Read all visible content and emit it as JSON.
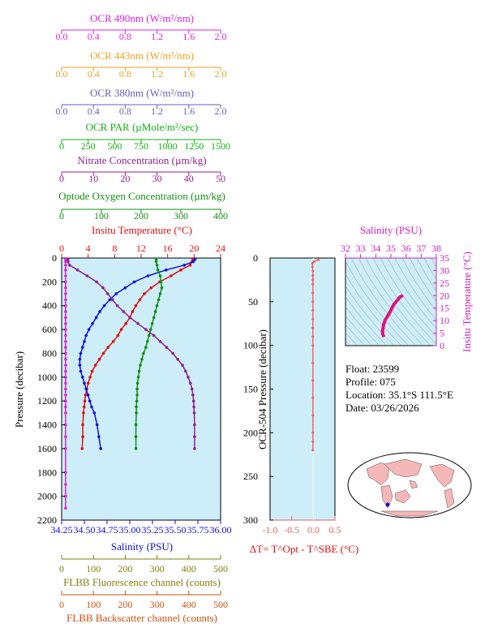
{
  "colors": {
    "panel_bg": "#cdeef8",
    "ocr490": "#e020e0",
    "ocr443": "#f0a020",
    "ocr380": "#6060c0",
    "par": "#10b010",
    "nitrate": "#902090",
    "oxygen": "#109010",
    "temperature": "#e01010",
    "salinity": "#1010e0",
    "fluorescence": "#808010",
    "backscatter": "#d05010",
    "dt": "#f06060",
    "ts_curve": "#e01080",
    "map_land": "#f4b8b8",
    "map_ocean": "#ffffff",
    "float_marker": "#1010e0"
  },
  "axes": {
    "ocr490": {
      "label": "OCR 490nm (W/m²/nm)",
      "ticks": [
        "0.0",
        "0.4",
        "0.8",
        "1.2",
        "1.6",
        "2.0"
      ]
    },
    "ocr443": {
      "label": "OCR 443nm (W/m²/nm)",
      "ticks": [
        "0.0",
        "0.4",
        "0.8",
        "1.2",
        "1.6",
        "2.0"
      ]
    },
    "ocr380": {
      "label": "OCR 380nm (W/m²/nm)",
      "ticks": [
        "0.0",
        "0.4",
        "0.8",
        "1.2",
        "1.6",
        "2.0"
      ]
    },
    "par": {
      "label": "OCR PAR (µMole/m²/sec)",
      "ticks": [
        "0",
        "250",
        "500",
        "750",
        "1000",
        "1250",
        "1500"
      ]
    },
    "nitrate": {
      "label": "Nitrate Concentration (µm/kg)",
      "ticks": [
        "0",
        "10",
        "20",
        "30",
        "40",
        "50"
      ]
    },
    "oxygen": {
      "label": "Optode Oxygen Concentration (µm/kg)",
      "ticks": [
        "0",
        "100",
        "200",
        "300",
        "400"
      ]
    },
    "temperature": {
      "label": "Insitu Temperature (°C)",
      "ticks": [
        "0",
        "4",
        "8",
        "12",
        "16",
        "20",
        "24"
      ]
    },
    "salinity": {
      "label": "Salinity (PSU)",
      "ticks": [
        "34.25",
        "34.50",
        "34.75",
        "35.00",
        "35.25",
        "35.50",
        "35.75",
        "36.00"
      ]
    },
    "fluorescence": {
      "label": "FLBB Fluorescence channel (counts)",
      "ticks": [
        "0",
        "100",
        "200",
        "300",
        "400",
        "500"
      ]
    },
    "backscatter": {
      "label": "FLBB Backscatter channel (counts)",
      "ticks": [
        "0",
        "100",
        "200",
        "300",
        "400",
        "500"
      ]
    },
    "pressure": {
      "label": "Pressure (decibar)",
      "ticks": [
        "0",
        "200",
        "400",
        "600",
        "800",
        "1000",
        "1200",
        "1400",
        "1600",
        "1800",
        "2000",
        "2200"
      ]
    },
    "ocr_pressure": {
      "label": "OCR-504 Pressure (decibar)",
      "ticks": [
        "0",
        "50",
        "100",
        "150",
        "200",
        "250",
        "300"
      ]
    },
    "dt": {
      "label": "ΔT= T^Opt - T^SBE (°C)",
      "ticks": [
        "-1.0",
        "-0.5",
        "0.0",
        "0.5"
      ]
    },
    "ts_salinity": {
      "label": "Salinity (PSU)",
      "ticks": [
        "32",
        "33",
        "34",
        "35",
        "36",
        "37",
        "38"
      ]
    },
    "ts_temperature": {
      "label": "Insitu Temperature (°C)",
      "ticks": [
        "0",
        "5",
        "10",
        "15",
        "20",
        "25",
        "30",
        "35"
      ]
    }
  },
  "info": {
    "float": "Float:  23599",
    "profile": "Profile:  075",
    "location": "Location:  35.1°S  111.5°E",
    "date": "Date:  03/26/2026"
  },
  "chart_data": [
    {
      "type": "line",
      "name": "main-profile",
      "ylim": [
        2200,
        0
      ],
      "series": [
        {
          "name": "Insitu Temperature",
          "xlim": [
            0,
            24
          ],
          "x": [
            19.8,
            19.7,
            19.4,
            18.0,
            16.5,
            14.8,
            13.5,
            12.5,
            11.8,
            11.2,
            10.7,
            10.3,
            9.7,
            9.0,
            8.5,
            7.8,
            7.0,
            6.3,
            5.7,
            5.1,
            4.6,
            4.3,
            4.0,
            3.8,
            3.6,
            3.5,
            3.4,
            3.3,
            3.2,
            3.2,
            3.1
          ],
          "y": [
            10,
            30,
            60,
            100,
            150,
            200,
            250,
            300,
            350,
            400,
            450,
            500,
            550,
            600,
            650,
            700,
            750,
            800,
            850,
            900,
            950,
            1000,
            1050,
            1100,
            1150,
            1200,
            1250,
            1300,
            1400,
            1500,
            1600
          ]
        },
        {
          "name": "Salinity",
          "xlim": [
            34.25,
            36.0
          ],
          "x": [
            35.72,
            35.7,
            35.6,
            35.4,
            35.2,
            35.05,
            34.95,
            34.85,
            34.78,
            34.72,
            34.67,
            34.63,
            34.59,
            34.55,
            34.52,
            34.5,
            34.48,
            34.46,
            34.45,
            34.45,
            34.46,
            34.48,
            34.5,
            34.52,
            34.54,
            34.56,
            34.58,
            34.61,
            34.64,
            34.66,
            34.68
          ],
          "y": [
            10,
            30,
            60,
            100,
            150,
            200,
            250,
            300,
            350,
            400,
            450,
            500,
            550,
            600,
            650,
            700,
            750,
            800,
            850,
            900,
            950,
            1000,
            1050,
            1100,
            1150,
            1200,
            1250,
            1300,
            1400,
            1500,
            1600
          ]
        },
        {
          "name": "Optode Oxygen",
          "xlim": [
            0,
            400
          ],
          "x": [
            238,
            238,
            240,
            242,
            248,
            250,
            252,
            248,
            244,
            240,
            236,
            232,
            228,
            224,
            220,
            216,
            212,
            206,
            202,
            198,
            195,
            193,
            191,
            190,
            190,
            189,
            188,
            188,
            187,
            187,
            187
          ],
          "y": [
            10,
            30,
            60,
            100,
            150,
            200,
            250,
            300,
            350,
            400,
            450,
            500,
            550,
            600,
            650,
            700,
            750,
            800,
            850,
            900,
            950,
            1000,
            1050,
            1100,
            1150,
            1200,
            1250,
            1300,
            1400,
            1500,
            1600
          ]
        },
        {
          "name": "Nitrate",
          "xlim": [
            0,
            50
          ],
          "x": [
            2,
            2,
            2.5,
            5,
            8,
            11,
            13,
            14.5,
            16,
            17.5,
            19.5,
            21.5,
            24,
            26.5,
            29,
            31,
            33,
            35,
            36.5,
            38,
            39,
            39.8,
            40.5,
            41,
            41.3,
            41.5,
            41.6,
            41.7,
            41.8,
            41.8,
            41.8
          ],
          "y": [
            10,
            30,
            60,
            100,
            150,
            200,
            250,
            300,
            350,
            400,
            450,
            500,
            550,
            600,
            650,
            700,
            750,
            800,
            850,
            900,
            950,
            1000,
            1050,
            1100,
            1150,
            1200,
            1250,
            1300,
            1400,
            1500,
            1600
          ]
        },
        {
          "name": "OCR 490nm",
          "xlim": [
            0,
            2.0
          ],
          "x": [
            0.05,
            0.05,
            0.05,
            0.05,
            0.05,
            0.05,
            0.05,
            0.05,
            0.05,
            0.05,
            0.05,
            0.05,
            0.05,
            0.05,
            0.05,
            0.05,
            0.05,
            0.05,
            0.05,
            0.05,
            0.05,
            0.05,
            0.05,
            0.05,
            0.05,
            0.05,
            0.05,
            0.05,
            0.05,
            0.05,
            0.05,
            0.05,
            0.05,
            0.05,
            0.05
          ],
          "y": [
            10,
            30,
            60,
            100,
            150,
            200,
            250,
            300,
            350,
            400,
            450,
            500,
            550,
            600,
            650,
            700,
            750,
            800,
            850,
            900,
            950,
            1000,
            1050,
            1100,
            1150,
            1200,
            1250,
            1300,
            1400,
            1500,
            1600,
            1800,
            1900,
            2000,
            2100
          ]
        }
      ]
    },
    {
      "type": "line",
      "name": "delta-t",
      "xlim": [
        -1.0,
        0.5
      ],
      "ylim": [
        300,
        0
      ],
      "series": [
        {
          "name": "dT",
          "x": [
            0.12,
            0.02,
            -0.02,
            -0.02,
            -0.01,
            -0.01,
            -0.01,
            -0.01,
            -0.01,
            -0.01,
            -0.01,
            -0.01,
            -0.01,
            -0.01,
            -0.01,
            -0.01,
            -0.01,
            -0.01,
            -0.01,
            -0.01,
            -0.01,
            -0.01
          ],
          "y": [
            2,
            4,
            6,
            10,
            15,
            20,
            25,
            30,
            40,
            50,
            60,
            70,
            80,
            90,
            100,
            120,
            140,
            160,
            180,
            200,
            210,
            220
          ]
        }
      ]
    },
    {
      "type": "line",
      "name": "ts-diagram",
      "xlim": [
        32,
        38
      ],
      "ylim": [
        0,
        35
      ],
      "series": [
        {
          "name": "T-S",
          "x": [
            35.72,
            35.7,
            35.6,
            35.4,
            35.2,
            35.05,
            34.95,
            34.85,
            34.78,
            34.72,
            34.67,
            34.63,
            34.59,
            34.55,
            34.52,
            34.5,
            34.48,
            34.46,
            34.45,
            34.45,
            34.46,
            34.48,
            34.5
          ],
          "y": [
            19.8,
            19.7,
            19.4,
            18.0,
            16.5,
            14.8,
            13.5,
            12.5,
            11.8,
            11.2,
            10.7,
            10.3,
            9.7,
            9.0,
            8.5,
            7.8,
            7.0,
            6.3,
            5.7,
            5.1,
            4.6,
            4.3,
            4.0
          ]
        }
      ]
    },
    {
      "type": "map",
      "name": "location-map",
      "marker": {
        "lat": -35.1,
        "lon": 111.5
      }
    }
  ]
}
